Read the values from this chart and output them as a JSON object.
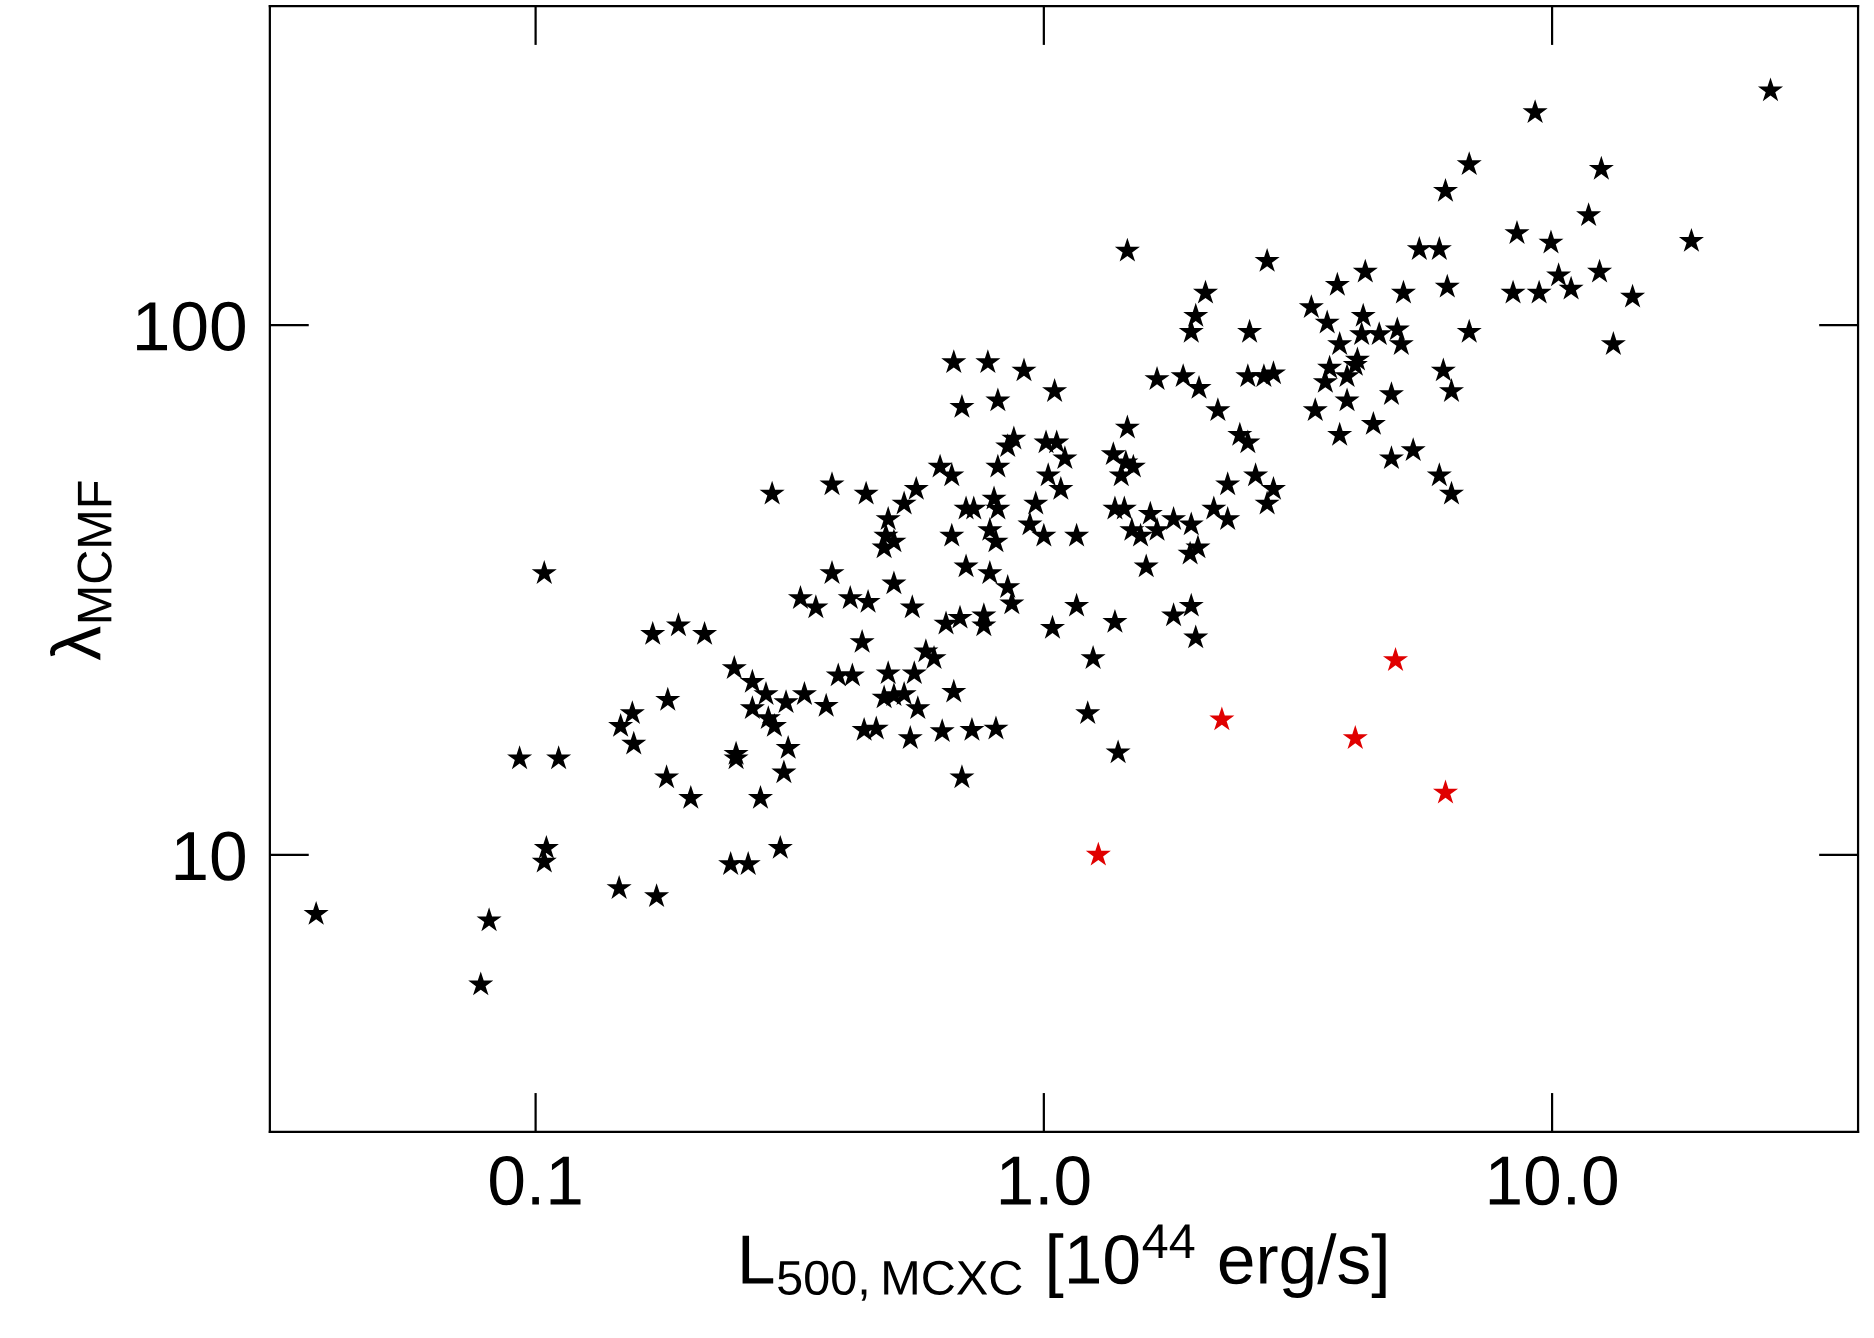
{
  "chart_data": {
    "type": "scatter",
    "xlabel": "L$_{500,MCXC}$ [10$^{44}$ erg/s]",
    "ylabel": "λ$_{MCMF}$",
    "log": "xy",
    "xlim": [
      0.03,
      40
    ],
    "ylim": [
      3,
      400
    ],
    "xticks": [
      0.1,
      {
        "value": 1,
        "label": "1.0"
      },
      {
        "value": 10,
        "label": "10.0"
      }
    ],
    "yticks": [
      10,
      100
    ],
    "grid": false,
    "marker": "star",
    "series": [
      {
        "color": "#000000",
        "x": [
          26.9,
          9.26,
          12.5,
          6.87,
          6.17,
          11.8,
          18.8,
          8.53,
          9.95,
          1.46,
          5.48,
          6.0,
          2.75,
          4.29,
          3.78,
          6.22,
          5.1,
          8.38,
          9.43,
          10.3,
          10.9,
          12.4,
          14.4,
          2.08,
          1.99,
          1.95,
          2.54,
          3.36,
          3.61,
          3.82,
          4.25,
          4.22,
          4.57,
          4.96,
          5.05,
          6.87,
          13.2,
          4.14,
          4.1,
          3.65,
          3.58,
          3.95,
          3.95,
          3.42,
          4.83,
          6.11,
          6.34,
          4.45,
          3.82,
          4.83,
          5.33,
          6.0,
          6.34,
          1.67,
          1.88,
          2.02,
          2.52,
          2.71,
          2.83,
          2.2,
          1.46,
          2.43,
          2.52,
          1.05,
          1.01,
          1.06,
          1.1,
          1.02,
          1.08,
          1.37,
          1.45,
          1.5,
          1.42,
          2.3,
          2.61,
          2.83,
          2.75,
          1.38,
          1.44,
          1.62,
          1.49,
          1.55,
          1.67,
          1.8,
          1.95,
          2.16,
          2.3,
          1.94,
          2.01,
          1.0,
          1.16,
          1.59,
          1.04,
          1.16,
          1.25,
          1.38,
          1.8,
          1.95,
          1.99,
          1.22,
          1.4,
          0.104,
          0.332,
          0.356,
          0.383,
          0.416,
          0.451,
          0.507,
          0.551,
          0.703,
          0.783,
          0.849,
          0.865,
          0.642,
          0.684,
          0.762,
          0.762,
          0.17,
          0.191,
          0.215,
          0.439,
          0.586,
          0.608,
          0.246,
          0.267,
          0.284,
          0.311,
          0.338,
          0.373,
          0.394,
          0.42,
          0.494,
          0.556,
          0.485,
          0.507,
          0.531,
          0.565,
          0.665,
          0.267,
          0.287,
          0.295,
          0.443,
          0.468,
          0.546,
          0.631,
          0.722,
          0.805,
          0.69,
          0.182,
          0.147,
          0.155,
          0.156,
          0.093,
          0.111,
          0.248,
          0.248,
          0.314,
          0.308,
          0.181,
          0.202,
          0.277,
          0.303,
          0.105,
          0.104,
          0.242,
          0.262,
          0.146,
          0.173,
          0.037,
          0.081,
          0.078,
          0.665,
          0.776,
          0.914,
          0.69,
          0.812,
          0.873,
          0.849,
          0.625,
          0.659,
          0.812,
          0.561,
          0.531,
          0.383,
          0.447,
          0.292,
          0.703,
          0.728,
          0.798,
          0.812,
          0.964,
          0.494,
          0.489,
          0.507,
          0.485,
          0.659,
          0.783,
          0.805,
          0.939
        ],
        "values": [
          277,
          252,
          197,
          201,
          179,
          161,
          144,
          149,
          143,
          138,
          139,
          139,
          132,
          126,
          119,
          118,
          115,
          115,
          115,
          124,
          117,
          126,
          113,
          115,
          104,
          97,
          97,
          108,
          101,
          92,
          104,
          96,
          96,
          98,
          92,
          97,
          92,
          86,
          84,
          83,
          78,
          80,
          72,
          69,
          74,
          82,
          75,
          65,
          62,
          56,
          58,
          52,
          48,
          79,
          80,
          76,
          80,
          80,
          81,
          69,
          64,
          62,
          60,
          75,
          60,
          60,
          56,
          52,
          49,
          57,
          55,
          54,
          52,
          50,
          52,
          49,
          46,
          45,
          45,
          44,
          41,
          40,
          41,
          43,
          42,
          45,
          43,
          37,
          38,
          40,
          40,
          35,
          26.8,
          29.5,
          23.5,
          27.5,
          28.3,
          29.5,
          25.7,
          18.5,
          15.6,
          34,
          30.5,
          29.3,
          34,
          30.5,
          30,
          32.5,
          29.3,
          35,
          34,
          32,
          29.8,
          27.3,
          28,
          28.3,
          27.1,
          26.1,
          27.1,
          26.1,
          25.2,
          24.2,
          23.5,
          22.5,
          21.2,
          20.1,
          19.4,
          20.1,
          19.1,
          21.8,
          21.8,
          22,
          22,
          19.8,
          20,
          20.1,
          18.9,
          20.3,
          18.9,
          18.1,
          17.5,
          17.2,
          17.3,
          16.6,
          17.1,
          17.2,
          17.3,
          14,
          19.6,
          17.5,
          18.5,
          16.2,
          15.2,
          15.2,
          15.5,
          15.2,
          15.9,
          14.3,
          14,
          12.8,
          12.8,
          10.3,
          10.3,
          9.7,
          9.6,
          9.6,
          8.65,
          8.35,
          7.73,
          7.52,
          5.69,
          85,
          85,
          82,
          70,
          72,
          61,
          59,
          54,
          52,
          54,
          49,
          46,
          50,
          48,
          48,
          45,
          45,
          47,
          45,
          46,
          43,
          40,
          39,
          38,
          40,
          41,
          39,
          42
        ]
      },
      {
        "color": "#e00000",
        "x": [
          1.28,
          2.24,
          4.1,
          4.92,
          6.17
        ],
        "values": [
          10.0,
          18.0,
          16.6,
          23.3,
          13.1
        ]
      }
    ]
  }
}
